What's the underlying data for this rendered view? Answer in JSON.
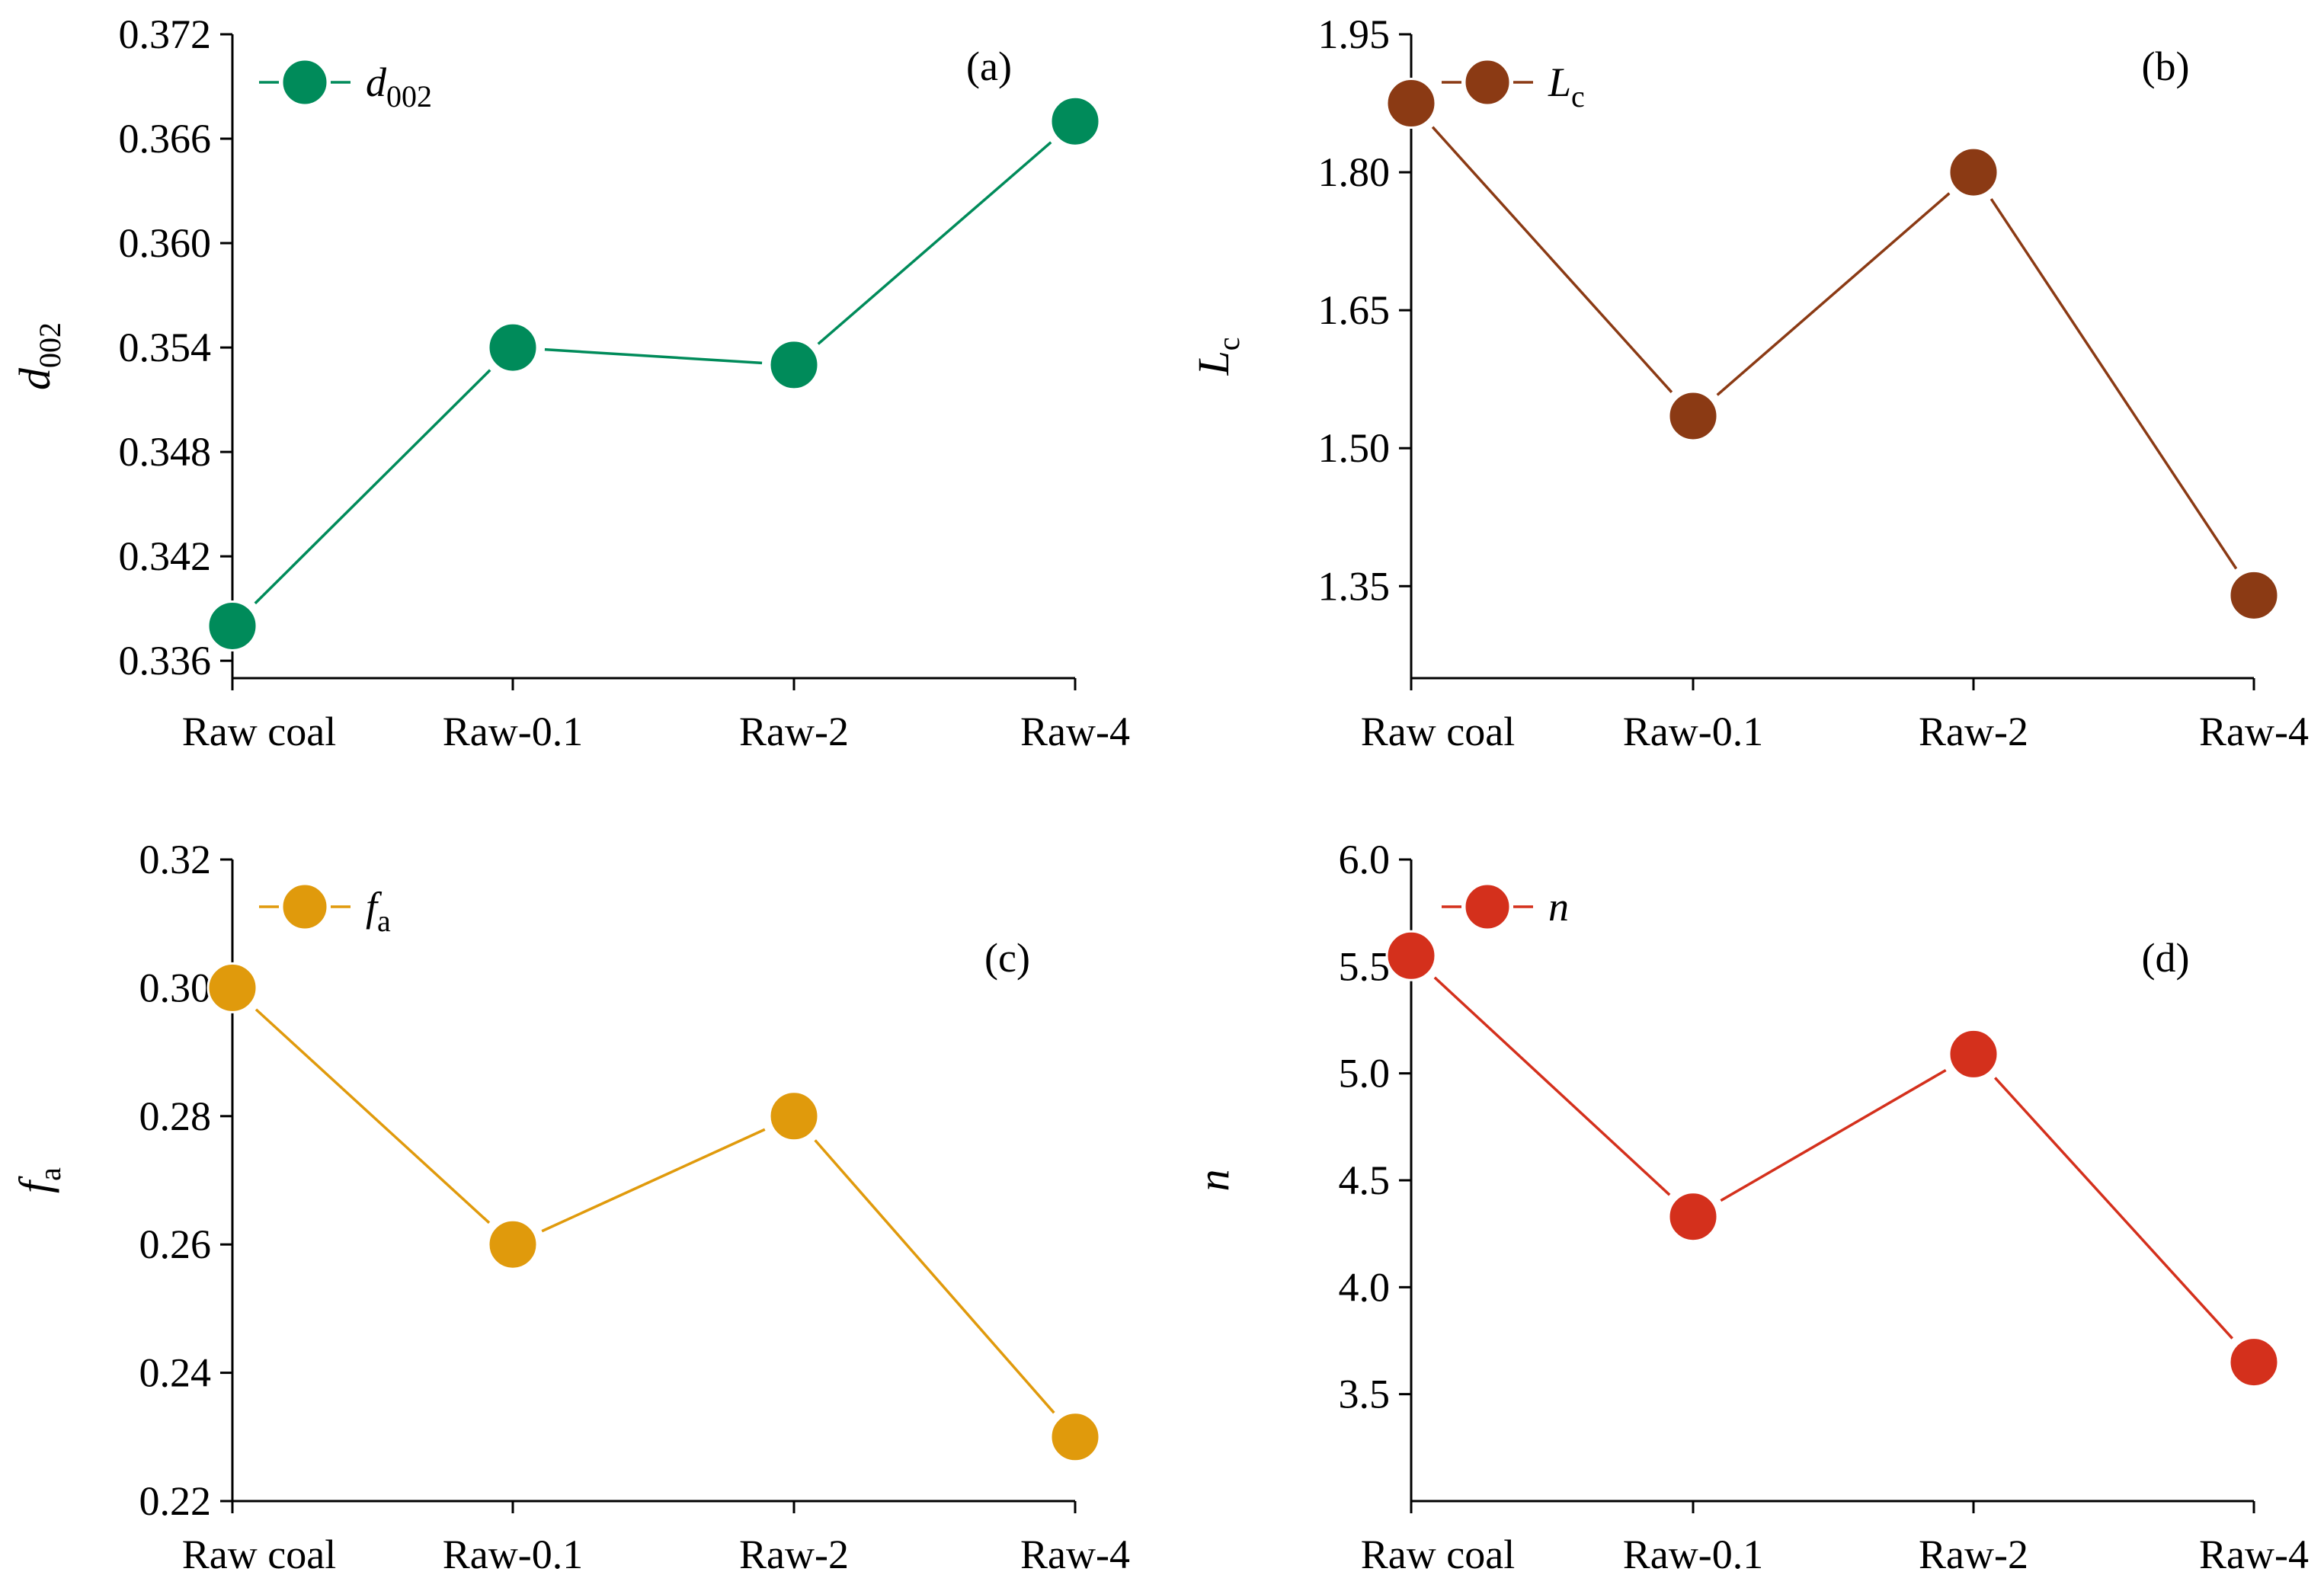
{
  "chart_data": [
    {
      "type": "line",
      "panel_label": "(a)",
      "categories": [
        "Raw coal",
        "Raw-0.1",
        "Raw-2",
        "Raw-4"
      ],
      "series": [
        {
          "name": "d",
          "name_subscript": "002",
          "values": [
            0.338,
            0.354,
            0.353,
            0.367
          ]
        }
      ],
      "ylabel": "d",
      "ylabel_subscript": "002",
      "ylim": [
        0.335,
        0.372
      ],
      "yticks": [
        "0.336",
        "0.342",
        "0.348",
        "0.354",
        "0.360",
        "0.366",
        "0.372"
      ],
      "color": "#008B5A",
      "legend": "top-left",
      "grid": false
    },
    {
      "type": "line",
      "panel_label": "(b)",
      "categories": [
        "Raw coal",
        "Raw-0.1",
        "Raw-2",
        "Raw-4"
      ],
      "series": [
        {
          "name": "L",
          "name_subscript": "c",
          "values": [
            1.875,
            1.535,
            1.8,
            1.34
          ]
        }
      ],
      "ylabel": "L",
      "ylabel_subscript": "c",
      "ylim": [
        1.25,
        1.95
      ],
      "yticks": [
        "1.35",
        "1.50",
        "1.65",
        "1.80",
        "1.95"
      ],
      "color": "#8B3A14",
      "legend": "top-left",
      "grid": false
    },
    {
      "type": "line",
      "panel_label": "(c)",
      "categories": [
        "Raw coal",
        "Raw-0.1",
        "Raw-2",
        "Raw-4"
      ],
      "series": [
        {
          "name": "f",
          "name_subscript": "a",
          "values": [
            0.3,
            0.26,
            0.28,
            0.23
          ]
        }
      ],
      "ylabel": "f",
      "ylabel_subscript": "a",
      "ylim": [
        0.22,
        0.32
      ],
      "yticks": [
        "0.22",
        "0.24",
        "0.26",
        "0.28",
        "0.30",
        "0.32"
      ],
      "color": "#E09A0C",
      "legend": "top-left",
      "grid": false
    },
    {
      "type": "line",
      "panel_label": "(d)",
      "categories": [
        "Raw coal",
        "Raw-0.1",
        "Raw-2",
        "Raw-4"
      ],
      "series": [
        {
          "name": "n",
          "name_subscript": "",
          "values": [
            5.55,
            4.33,
            5.09,
            3.65
          ]
        }
      ],
      "ylabel": "n",
      "ylabel_subscript": "",
      "ylim": [
        3.0,
        6.0
      ],
      "yticks": [
        "3.5",
        "4.0",
        "4.5",
        "5.0",
        "5.5",
        "6.0"
      ],
      "color": "#D4301C",
      "legend": "top-left",
      "grid": false
    }
  ]
}
